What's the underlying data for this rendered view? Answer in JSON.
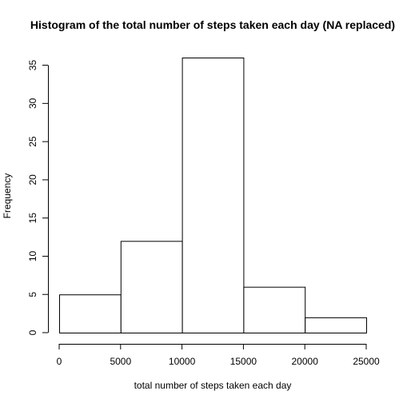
{
  "chart_data": {
    "type": "bar",
    "title": "Histogram of the total number of steps taken each day (NA replaced)",
    "xlabel": "total number of steps taken each day",
    "ylabel": "Frequency",
    "bins": [
      {
        "from": 0,
        "to": 5000,
        "count": 5
      },
      {
        "from": 5000,
        "to": 10000,
        "count": 12
      },
      {
        "from": 10000,
        "to": 15000,
        "count": 36
      },
      {
        "from": 15000,
        "to": 20000,
        "count": 6
      },
      {
        "from": 20000,
        "to": 25000,
        "count": 2
      }
    ],
    "xlim": [
      0,
      25000
    ],
    "ylim": [
      0,
      36
    ],
    "x_ticks": [
      0,
      5000,
      10000,
      15000,
      20000,
      25000
    ],
    "y_ticks": [
      0,
      5,
      10,
      15,
      20,
      25,
      30,
      35
    ],
    "grid": false
  }
}
